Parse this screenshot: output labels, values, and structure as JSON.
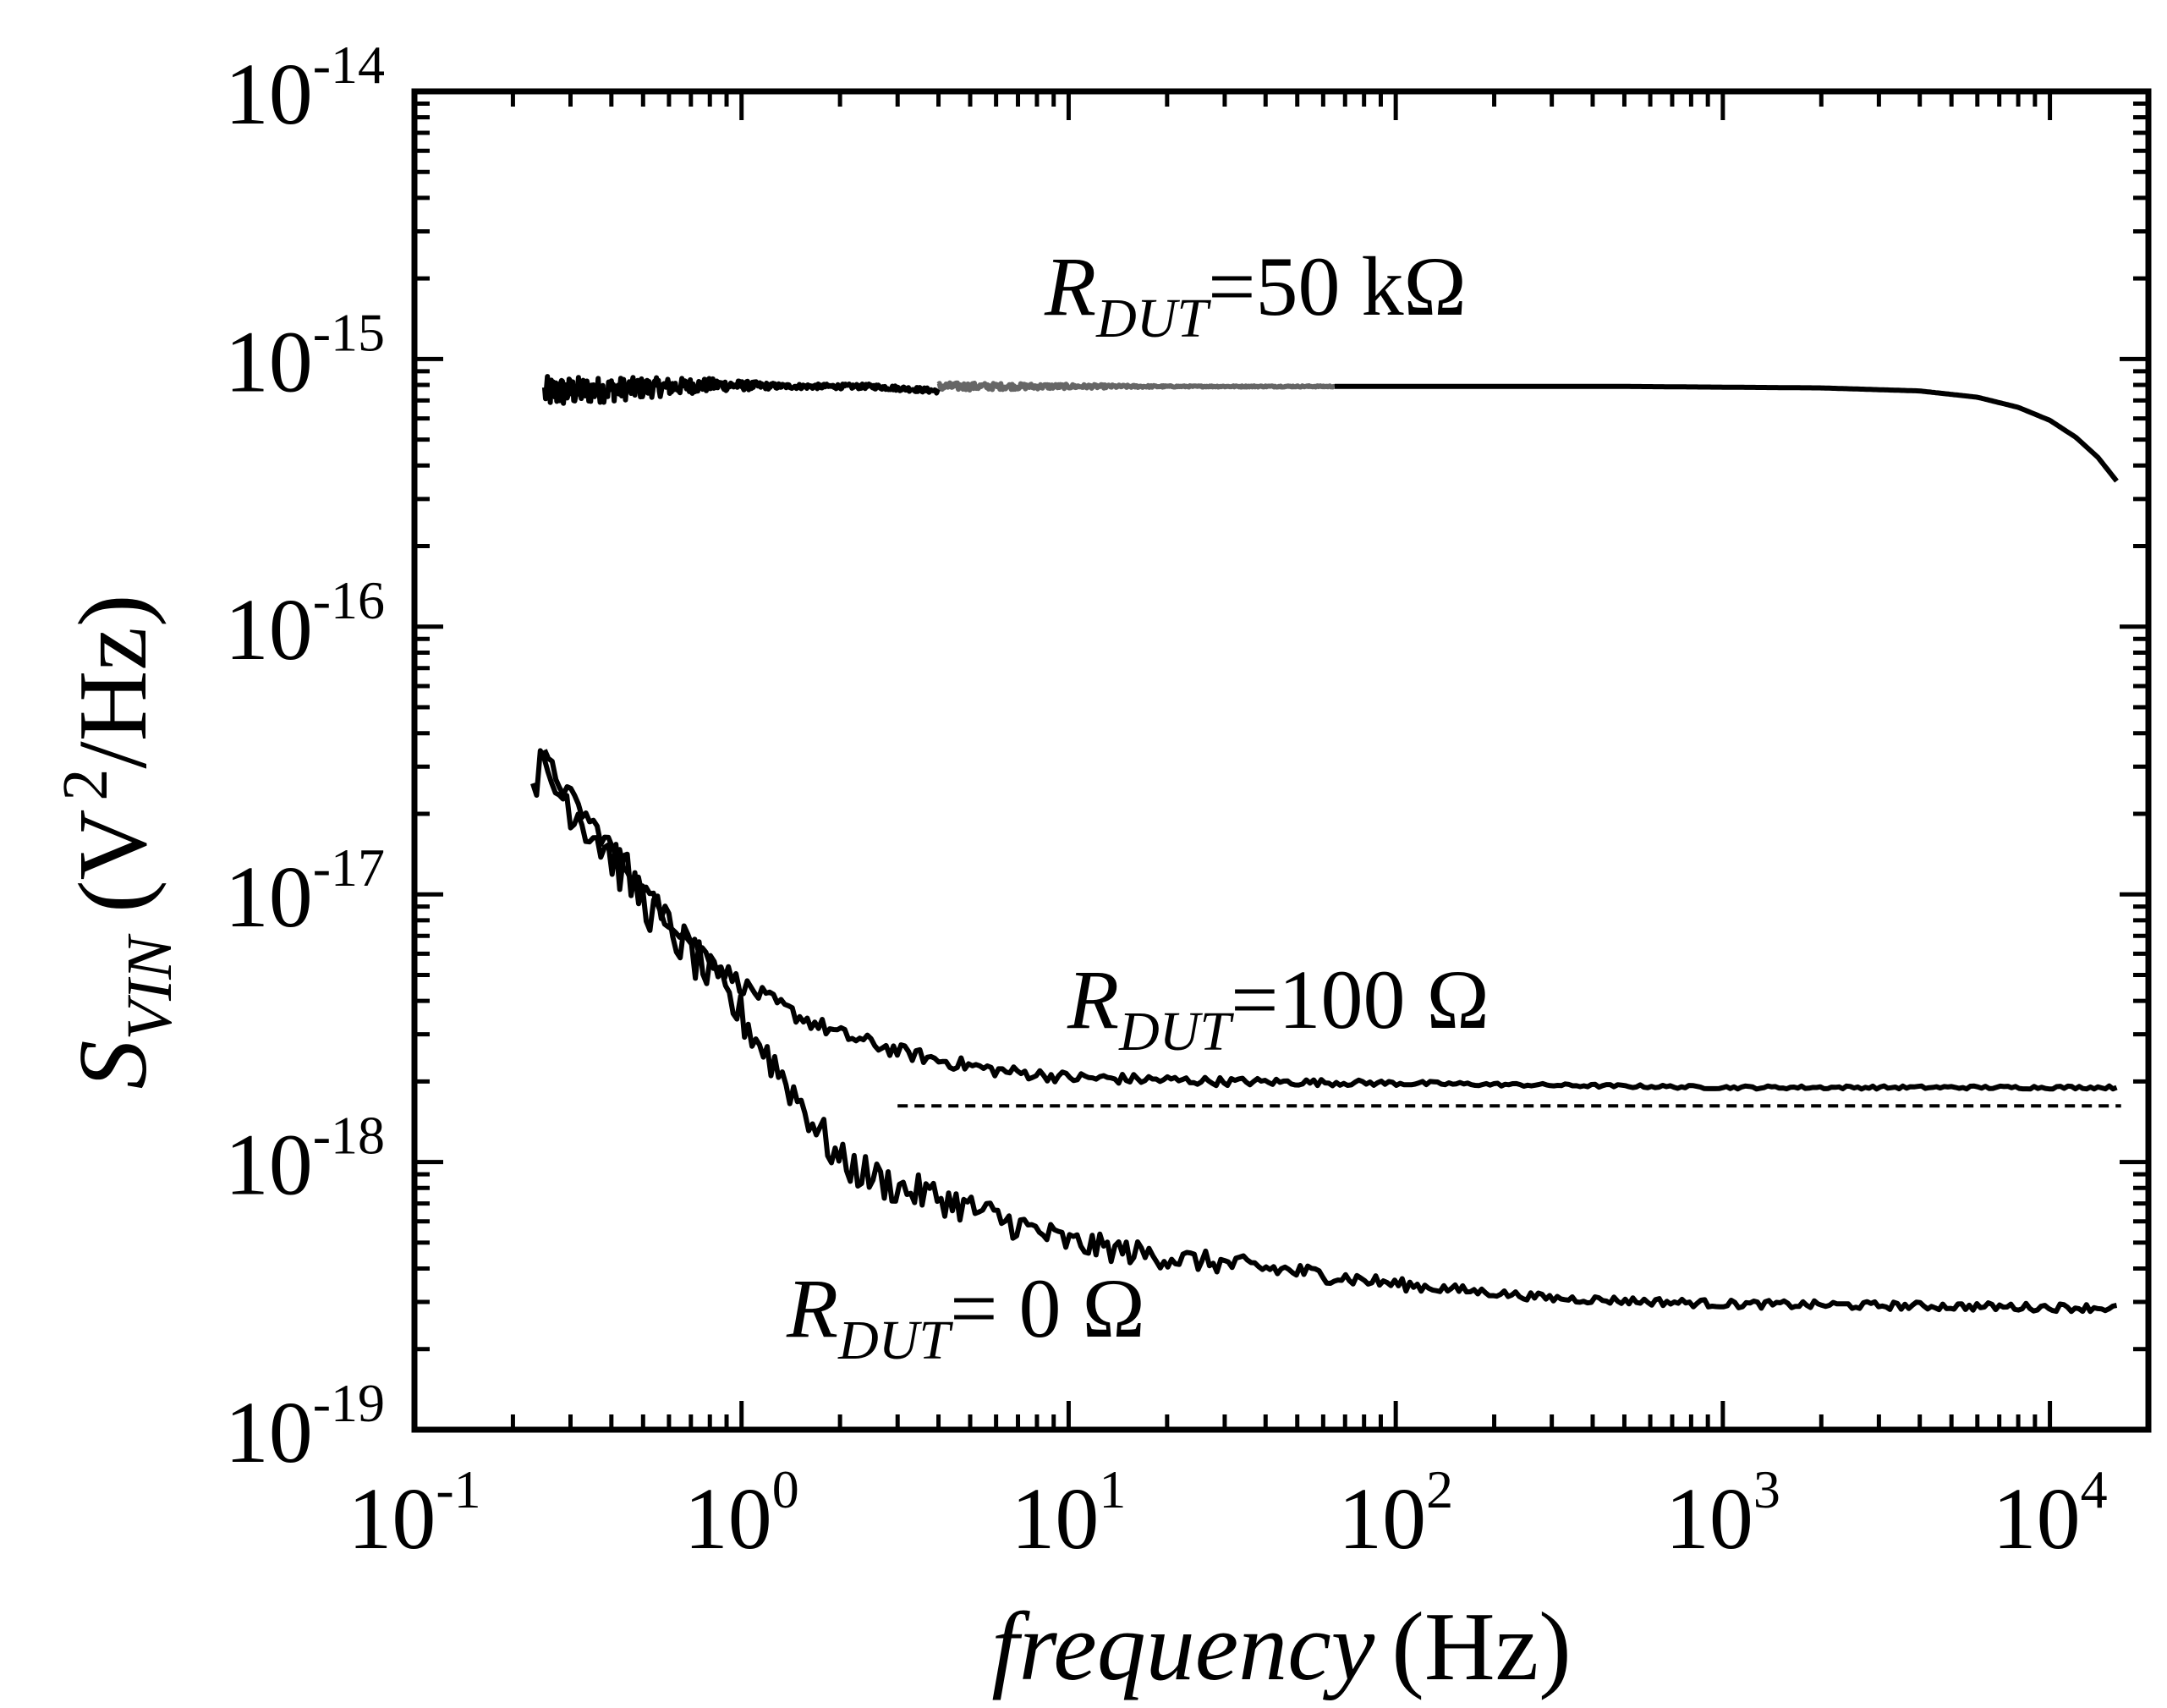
{
  "chart_data": {
    "type": "line",
    "title": "",
    "xscale": "log",
    "yscale": "log",
    "xlim": [
      0.1,
      20000
    ],
    "ylim": [
      1e-19,
      1e-14
    ],
    "x_axis": {
      "label_italic": "frequency",
      "label_unit": "(Hz)",
      "ticks": [
        {
          "value": 0.1,
          "base": "10",
          "exp": "-1"
        },
        {
          "value": 1,
          "base": "10",
          "exp": "0"
        },
        {
          "value": 10,
          "base": "10",
          "exp": "1"
        },
        {
          "value": 100,
          "base": "10",
          "exp": "2"
        },
        {
          "value": 1000,
          "base": "10",
          "exp": "3"
        },
        {
          "value": 10000,
          "base": "10",
          "exp": "4"
        }
      ]
    },
    "y_axis": {
      "label_symbol": "S",
      "label_subscript": "VIN",
      "label_unit_open": "(V",
      "label_unit_exp": "2",
      "label_unit_close": "/Hz)",
      "ticks": [
        {
          "value": 1e-19,
          "base": "10",
          "exp": "-19"
        },
        {
          "value": 1e-18,
          "base": "10",
          "exp": "-18"
        },
        {
          "value": 1e-17,
          "base": "10",
          "exp": "-17"
        },
        {
          "value": 1e-16,
          "base": "10",
          "exp": "-16"
        },
        {
          "value": 1e-15,
          "base": "10",
          "exp": "-15"
        },
        {
          "value": 1e-14,
          "base": "10",
          "exp": "-14"
        }
      ]
    },
    "annotations": [
      {
        "symbol": "R",
        "subscript": "DUT",
        "text": "=50 kΩ",
        "series": "R_DUT = 50 kΩ"
      },
      {
        "symbol": "R",
        "subscript": "DUT",
        "text": "=100 Ω",
        "series": "R_DUT = 100 Ω"
      },
      {
        "symbol": "R",
        "subscript": "DUT",
        "text": "= 0 Ω",
        "series": "R_DUT = 0 Ω"
      }
    ],
    "series": [
      {
        "name": "R_DUT = 50 kΩ (low band)",
        "color": "#000000",
        "noise": 0.06,
        "points": [
          [
            0.25,
            7.5e-16
          ],
          [
            0.4,
            7.7e-16
          ],
          [
            0.8,
            8e-16
          ],
          [
            1.5,
            7.9e-16
          ],
          [
            2.5,
            7.9e-16
          ],
          [
            4.0,
            7.6e-16
          ]
        ]
      },
      {
        "name": "R_DUT = 50 kΩ (mid band)",
        "color": "#666666",
        "noise": 0.015,
        "points": [
          [
            4.0,
            7.9e-16
          ],
          [
            10,
            7.9e-16
          ],
          [
            30,
            7.9e-16
          ],
          [
            65,
            7.9e-16
          ]
        ]
      },
      {
        "name": "R_DUT = 50 kΩ (high band)",
        "color": "#000000",
        "noise": 0.0,
        "points": [
          [
            65,
            7.9e-16
          ],
          [
            500,
            7.9e-16
          ],
          [
            2000,
            7.8e-16
          ],
          [
            4000,
            7.6e-16
          ],
          [
            6000,
            7.2e-16
          ],
          [
            8000,
            6.6e-16
          ],
          [
            10000,
            5.9e-16
          ],
          [
            12000,
            5.1e-16
          ],
          [
            14000,
            4.3e-16
          ],
          [
            16000,
            3.5e-16
          ]
        ]
      },
      {
        "name": "R_DUT = 100 Ω",
        "color": "#000000",
        "noise": 0.04,
        "points": [
          [
            0.25,
            3.2e-17
          ],
          [
            0.3,
            2.3e-17
          ],
          [
            0.4,
            1.5e-17
          ],
          [
            0.5,
            1.05e-17
          ],
          [
            0.6,
            8e-18
          ],
          [
            0.8,
            5.8e-18
          ],
          [
            1.0,
            4.6e-18
          ],
          [
            1.5,
            3.5e-18
          ],
          [
            2.0,
            3e-18
          ],
          [
            3.0,
            2.6e-18
          ],
          [
            4.0,
            2.4e-18
          ],
          [
            6.0,
            2.2e-18
          ],
          [
            10,
            2.07e-18
          ],
          [
            30,
            2e-18
          ],
          [
            100,
            1.97e-18
          ],
          [
            1000,
            1.9e-18
          ],
          [
            16000,
            1.9e-18
          ]
        ]
      },
      {
        "name": "R_DUT = 0 Ω",
        "color": "#000000",
        "noise": 0.1,
        "points": [
          [
            0.23,
            3e-17
          ],
          [
            0.3,
            2.2e-17
          ],
          [
            0.4,
            1.4e-17
          ],
          [
            0.5,
            9.5e-18
          ],
          [
            0.7,
            6e-18
          ],
          [
            1.0,
            3.5e-18
          ],
          [
            1.5,
            1.7e-18
          ],
          [
            2.0,
            1e-18
          ],
          [
            3.0,
            8e-19
          ],
          [
            4.0,
            7.4e-19
          ],
          [
            6.0,
            6.2e-19
          ],
          [
            10,
            5e-19
          ],
          [
            20,
            4.4e-19
          ],
          [
            50,
            3.9e-19
          ],
          [
            100,
            3.5e-19
          ],
          [
            300,
            3.1e-19
          ],
          [
            1000,
            2.95e-19
          ],
          [
            16000,
            2.85e-19
          ]
        ]
      },
      {
        "name": "reference level (dashed)",
        "color": "#000000",
        "dashed": true,
        "noise": 0.0,
        "points": [
          [
            3.0,
            1.62e-18
          ],
          [
            16500,
            1.62e-18
          ]
        ]
      }
    ]
  }
}
